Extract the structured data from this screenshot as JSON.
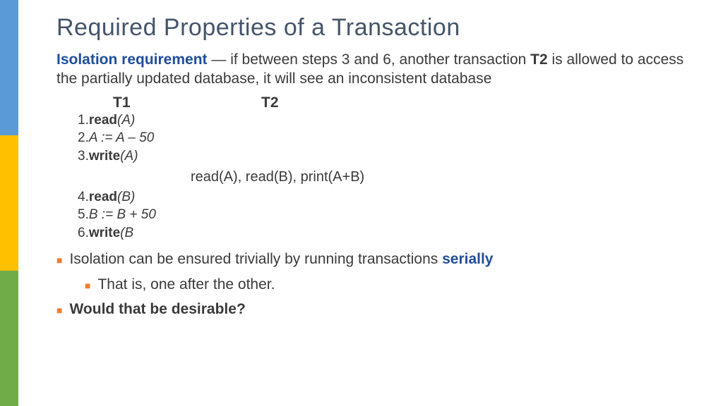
{
  "colors": {
    "sidebar_blue": "#5b9bd5",
    "sidebar_yellow": "#ffc000",
    "sidebar_green": "#70ad47",
    "title": "#44546a",
    "body": "#3a3a3a",
    "accent_blue": "#1f4e9b",
    "accent_red": "#d00000",
    "bullet_marker": "#ed7d31",
    "background": "#ffffff"
  },
  "title": "Required Properties of a Transaction",
  "intro": {
    "lead": "Isolation requirement",
    "dash": " — ",
    "body1": "if between steps 3 and 6, another transaction ",
    "t2": "T2",
    "body2": " is allowed to access the partially updated database, it will see an inconsistent database"
  },
  "tx": {
    "header1": "T1",
    "header2": "T2",
    "steps_a": [
      {
        "n": "1.",
        "kw": "read",
        "arg": "(A)"
      },
      {
        "n": "2.",
        "plain": "A := A – 50"
      },
      {
        "n": "3.",
        "kw": "write",
        "arg": "(A)"
      }
    ],
    "interleave": "read(A), read(B), print(A+B)",
    "steps_b": [
      {
        "n": "4.",
        "kw": "read",
        "arg": "(B)"
      },
      {
        "n": "5.",
        "plain": "B := B + 50"
      },
      {
        "n": "6.",
        "kw": "write",
        "arg": "(B"
      }
    ]
  },
  "bullets": {
    "b1a": "Isolation can be ensured trivially by running transactions ",
    "b1b": "serially",
    "b2": "That is, one after the other.",
    "b3": "Would that be desirable?"
  }
}
